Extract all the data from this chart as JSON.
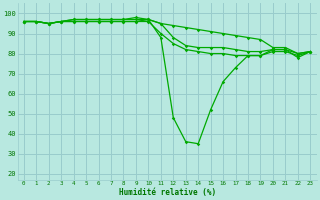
{
  "x": [
    0,
    1,
    2,
    3,
    4,
    5,
    6,
    7,
    8,
    9,
    10,
    11,
    12,
    13,
    14,
    15,
    16,
    17,
    18,
    19,
    20,
    21,
    22,
    23
  ],
  "line1": [
    96,
    96,
    95,
    96,
    96,
    96,
    96,
    96,
    96,
    96,
    97,
    88,
    48,
    36,
    35,
    52,
    66,
    73,
    79,
    79,
    82,
    82,
    78,
    81
  ],
  "line2": [
    96,
    96,
    95,
    96,
    97,
    97,
    97,
    97,
    97,
    97,
    97,
    95,
    88,
    84,
    83,
    83,
    83,
    82,
    81,
    81,
    82,
    82,
    80,
    81
  ],
  "line3": [
    96,
    96,
    95,
    96,
    96,
    96,
    96,
    96,
    96,
    96,
    96,
    90,
    85,
    82,
    81,
    80,
    80,
    79,
    79,
    79,
    81,
    81,
    79,
    81
  ],
  "line4": [
    96,
    96,
    95,
    96,
    97,
    97,
    97,
    97,
    97,
    98,
    97,
    95,
    94,
    93,
    92,
    91,
    90,
    89,
    88,
    87,
    83,
    83,
    80,
    81
  ],
  "line_color": "#00aa00",
  "bg_color": "#b8e8e0",
  "grid_color": "#99cccc",
  "xlabel": "Humidité relative (%)",
  "xlabel_color": "#007700",
  "ytick_values": [
    20,
    30,
    40,
    50,
    60,
    70,
    80,
    90,
    100
  ],
  "ytick_labels": [
    "20",
    "30",
    "40",
    "50",
    "60",
    "70",
    "80",
    "90",
    "100"
  ],
  "ylim": [
    17,
    105
  ],
  "xlim": [
    -0.5,
    23.5
  ],
  "tick_color": "#007700",
  "markersize": 1.8,
  "linewidth": 0.9
}
